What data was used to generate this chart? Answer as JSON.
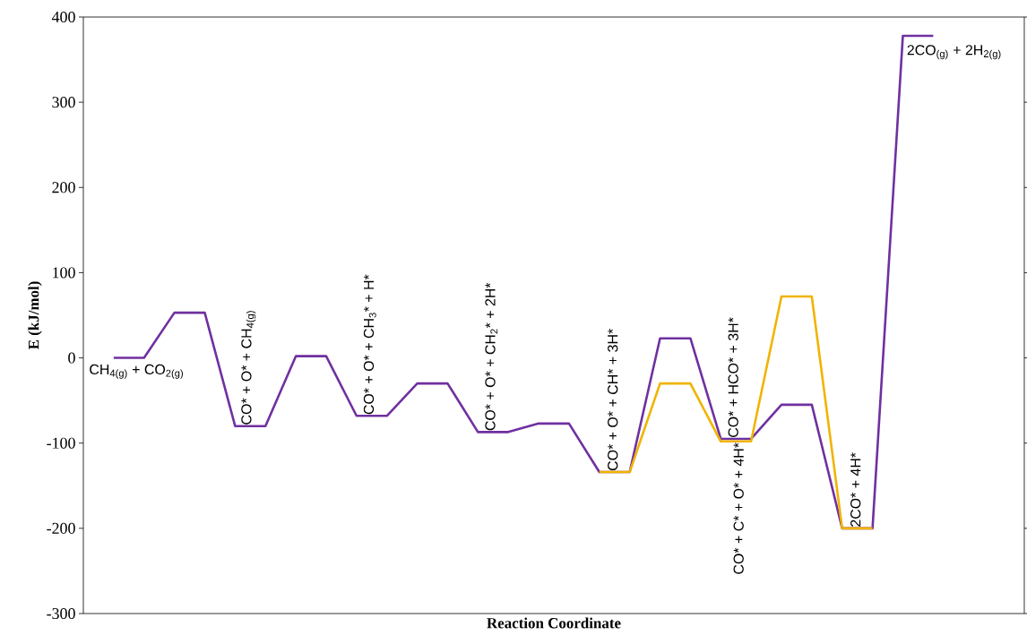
{
  "chart_data": {
    "type": "line",
    "xlabel": "Reaction Coordinate",
    "ylabel": "E (kJ/mol)",
    "categories": [
      null,
      null,
      null,
      null,
      null,
      null,
      null,
      null,
      null,
      null,
      null,
      null,
      null,
      null,
      null,
      null,
      null,
      null,
      null,
      null,
      null,
      null,
      null,
      null,
      null,
      null,
      null,
      null
    ],
    "series": [
      {
        "color": "#7030a0",
        "values": [
          0,
          0,
          53,
          53,
          -80,
          -80,
          2,
          2,
          -68,
          -68,
          -30,
          -30,
          -87,
          -87,
          -77,
          -77,
          -134,
          -134,
          23,
          23,
          -95,
          -95,
          -55,
          -55,
          -200,
          -200,
          378,
          378
        ]
      },
      {
        "color": "#f0b400",
        "values": [
          null,
          null,
          null,
          null,
          null,
          null,
          null,
          null,
          null,
          null,
          null,
          null,
          null,
          null,
          null,
          null,
          -134,
          -134,
          -30,
          -30,
          -98,
          -98,
          72,
          72,
          -200,
          -200,
          null,
          null
        ]
      }
    ],
    "ylim": [
      -300,
      400
    ],
    "yticks": [
      -300,
      -200,
      -100,
      0,
      100,
      200,
      300,
      400
    ],
    "tick_labels": "y",
    "annotations": [
      {
        "text": "CH$_{4(g)}$ + CO$_{2(g)}$",
        "y": 0
      },
      {
        "text": "CO* + O* + CH$_{4(g)}$",
        "y": -80
      },
      {
        "text": "CO* + O* + CH$_{3}$* + H*",
        "y": -68
      },
      {
        "text": "CO* + O* + CH$_{2}$* + 2H*",
        "y": -87
      },
      {
        "text": "CO* + O* + CH* + 3H*",
        "y": -134
      },
      {
        "text": "CO* + HCO* + 3H*",
        "y": -95
      },
      {
        "text": "CO* + C* + O* + 4H*",
        "y": -98
      },
      {
        "text": "2CO* + 4H*",
        "y": -200
      },
      "2CO$_{(g)}$ + 2H$_{2(g)}$"
    ]
  }
}
